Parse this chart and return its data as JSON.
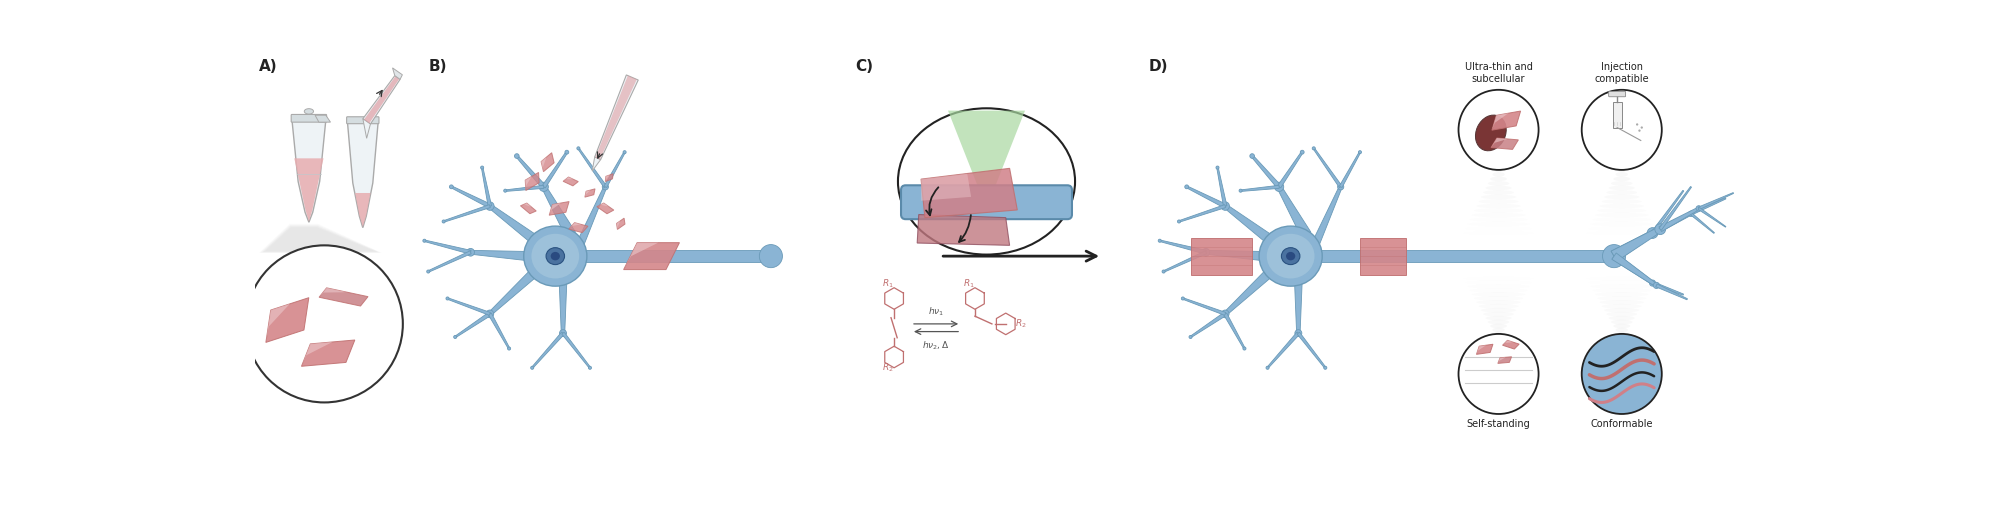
{
  "fig_width": 20.0,
  "fig_height": 5.11,
  "bg_color": "#ffffff",
  "text_color": "#222222",
  "label_A": "A)",
  "label_B": "B)",
  "label_C": "C)",
  "label_D": "D)",
  "label_ultrathin": "Ultra-thin and\nsubcellular",
  "label_injection": "Injection\ncompatible",
  "label_selfstanding": "Self-standing",
  "label_conformable": "Conformable",
  "pink": "#d4868a",
  "pink2": "#c07070",
  "pink_light": "#e8b8bc",
  "blue": "#8ab4d4",
  "blue2": "#6a9ab8",
  "blue_light": "#b0cfe0",
  "blue_dark": "#5a8aaa",
  "gray": "#aaaaaa",
  "light_gray": "#dddddd",
  "green_tri": "#90c890",
  "dark_brown": "#6a3535",
  "chem_color": "#c07070"
}
